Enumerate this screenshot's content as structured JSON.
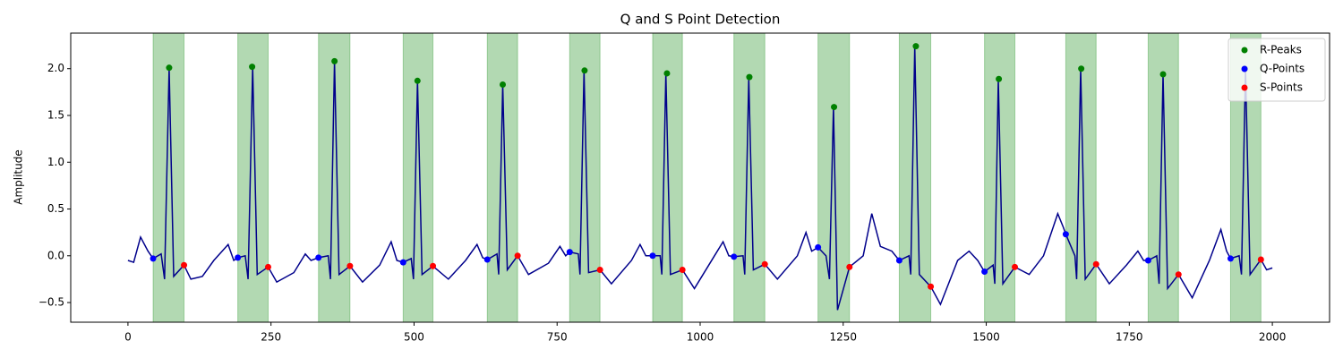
{
  "chart_data": {
    "type": "line",
    "title": "Q and S Point Detection",
    "y_label": "Amplitude",
    "xlim": [
      -100,
      2100
    ],
    "ylim": [
      -0.71,
      2.38
    ],
    "xticks": [
      0,
      250,
      500,
      750,
      1000,
      1250,
      1500,
      1750,
      2000
    ],
    "yticks": [
      {
        "value": -0.5,
        "label": "−0.5"
      },
      {
        "value": 0,
        "label": "0.0"
      },
      {
        "value": 0.5,
        "label": "0.5"
      },
      {
        "value": 1,
        "label": "1.0"
      },
      {
        "value": 1.5,
        "label": "1.5"
      },
      {
        "value": 2,
        "label": "2.0"
      }
    ],
    "legend": "upper right",
    "shade_color": "green",
    "shaded_regions": [
      [
        44,
        98
      ],
      [
        192,
        245
      ],
      [
        333,
        388
      ],
      [
        481,
        533
      ],
      [
        628,
        681
      ],
      [
        772,
        825
      ],
      [
        917,
        969
      ],
      [
        1059,
        1113
      ],
      [
        1206,
        1261
      ],
      [
        1348,
        1403
      ],
      [
        1497,
        1550
      ],
      [
        1639,
        1692
      ],
      [
        1783,
        1836
      ],
      [
        1927,
        1980
      ]
    ],
    "line": {
      "color": "#00008b",
      "x": [
        0,
        10,
        22,
        35,
        44,
        58,
        64,
        72,
        80,
        98,
        110,
        130,
        150,
        175,
        185,
        192,
        205,
        210,
        218,
        226,
        245,
        260,
        290,
        310,
        320,
        333,
        350,
        354,
        361,
        369,
        388,
        410,
        440,
        460,
        470,
        481,
        495,
        499,
        506,
        514,
        533,
        560,
        590,
        610,
        620,
        628,
        645,
        648,
        655,
        663,
        681,
        700,
        735,
        755,
        765,
        772,
        787,
        790,
        797,
        805,
        825,
        845,
        880,
        895,
        905,
        917,
        930,
        933,
        940,
        948,
        969,
        990,
        1025,
        1040,
        1050,
        1059,
        1075,
        1078,
        1085,
        1093,
        1113,
        1135,
        1170,
        1185,
        1195,
        1206,
        1220,
        1226,
        1233,
        1240,
        1261,
        1285,
        1300,
        1315,
        1335,
        1348,
        1365,
        1368,
        1375,
        1383,
        1403,
        1420,
        1450,
        1470,
        1485,
        1497,
        1512,
        1515,
        1521,
        1529,
        1550,
        1575,
        1600,
        1625,
        1635,
        1639,
        1655,
        1658,
        1665,
        1673,
        1692,
        1715,
        1745,
        1765,
        1775,
        1783,
        1798,
        1802,
        1809,
        1817,
        1836,
        1860,
        1890,
        1910,
        1920,
        1927,
        1942,
        1946,
        1953,
        1961,
        1980,
        1990,
        2000
      ],
      "values": [
        -0.05,
        -0.07,
        0.2,
        0.05,
        -0.03,
        0.02,
        -0.25,
        2.01,
        -0.22,
        -0.1,
        -0.25,
        -0.22,
        -0.05,
        0.12,
        -0.05,
        -0.02,
        0.0,
        -0.25,
        2.02,
        -0.2,
        -0.12,
        -0.28,
        -0.18,
        0.02,
        -0.05,
        -0.02,
        0.0,
        -0.25,
        2.08,
        -0.2,
        -0.11,
        -0.28,
        -0.1,
        0.15,
        -0.05,
        -0.07,
        -0.03,
        -0.25,
        1.87,
        -0.2,
        -0.11,
        -0.25,
        -0.05,
        0.12,
        -0.02,
        -0.04,
        0.02,
        -0.2,
        1.83,
        -0.15,
        0.0,
        -0.2,
        -0.08,
        0.1,
        0.0,
        0.04,
        0.02,
        -0.2,
        1.98,
        -0.18,
        -0.15,
        -0.3,
        -0.05,
        0.12,
        0.0,
        0.0,
        0.0,
        -0.2,
        1.95,
        -0.2,
        -0.15,
        -0.35,
        0.0,
        0.15,
        0.0,
        -0.01,
        0.0,
        -0.2,
        1.91,
        -0.15,
        -0.09,
        -0.25,
        0.0,
        0.25,
        0.05,
        0.09,
        0.0,
        -0.25,
        1.59,
        -0.58,
        -0.12,
        0.0,
        0.45,
        0.1,
        0.05,
        -0.05,
        0.0,
        -0.2,
        2.24,
        -0.2,
        -0.33,
        -0.52,
        -0.05,
        0.05,
        -0.05,
        -0.17,
        -0.1,
        -0.3,
        1.89,
        -0.3,
        -0.12,
        -0.2,
        0.0,
        0.45,
        0.3,
        0.23,
        0.0,
        -0.25,
        2.0,
        -0.25,
        -0.09,
        -0.3,
        -0.1,
        0.05,
        -0.05,
        -0.05,
        0.0,
        -0.3,
        1.94,
        -0.35,
        -0.2,
        -0.45,
        -0.05,
        0.28,
        0.05,
        -0.03,
        0.0,
        -0.2,
        2.0,
        -0.2,
        -0.04,
        -0.15,
        -0.13
      ]
    },
    "series": [
      {
        "name": "R-Peaks",
        "color": "green",
        "x": [
          72,
          217,
          361,
          506,
          655,
          798,
          942,
          1086,
          1234,
          1377,
          1522,
          1666,
          1809,
          1952
        ],
        "values": [
          2.01,
          2.02,
          2.08,
          1.87,
          1.83,
          1.98,
          1.95,
          1.91,
          1.59,
          2.24,
          1.89,
          2.0,
          1.94,
          2.0
        ]
      },
      {
        "name": "Q-Points",
        "color": "blue",
        "x": [
          44,
          192,
          333,
          481,
          628,
          772,
          917,
          1059,
          1206,
          1348,
          1497,
          1639,
          1783,
          1927
        ],
        "values": [
          -0.03,
          -0.02,
          -0.02,
          -0.07,
          -0.04,
          0.04,
          0.0,
          -0.01,
          0.09,
          -0.05,
          -0.17,
          0.23,
          -0.05,
          -0.03
        ]
      },
      {
        "name": "S-Points",
        "color": "red",
        "x": [
          98,
          245,
          388,
          533,
          681,
          825,
          969,
          1113,
          1261,
          1403,
          1550,
          1692,
          1836,
          1980
        ],
        "values": [
          -0.1,
          -0.12,
          -0.11,
          -0.11,
          0.0,
          -0.15,
          -0.15,
          -0.09,
          -0.12,
          -0.33,
          -0.12,
          -0.09,
          -0.2,
          -0.04
        ]
      }
    ]
  }
}
